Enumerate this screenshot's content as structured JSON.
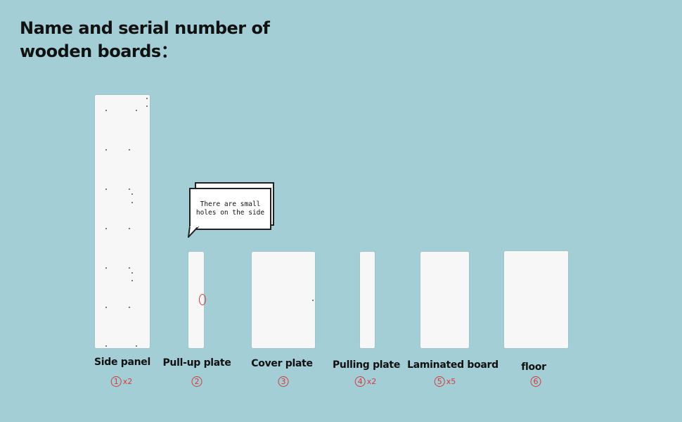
{
  "title": {
    "line1": "Name and serial number of",
    "line2": "wooden boards："
  },
  "callout": {
    "line1": "There are small",
    "line2": "holes on the side"
  },
  "boards": [
    {
      "name": "Side panel",
      "number": "①",
      "qty": "x2"
    },
    {
      "name": "Pull-up plate",
      "number": "②",
      "qty": ""
    },
    {
      "name": "Cover plate",
      "number": "③",
      "qty": ""
    },
    {
      "name": "Pulling plate",
      "number": "④",
      "qty": "x2"
    },
    {
      "name": "Laminated board",
      "number": "⑤",
      "qty": "x5"
    },
    {
      "name": "floor",
      "number": "⑥",
      "qty": ""
    }
  ],
  "colors": {
    "background": "#a3ced6",
    "board": "#f6f7f6",
    "accent_red": "#d33b3b"
  }
}
